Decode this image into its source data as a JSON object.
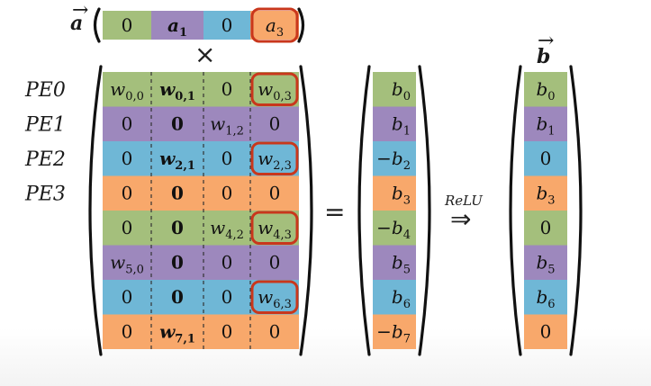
{
  "colors": {
    "green": "#a4bf7c",
    "purple": "#9d88bd",
    "blue": "#6fb7d6",
    "orange": "#f8a86b",
    "highlight": "#c9371c"
  },
  "vector_a": {
    "label": "a",
    "cells": [
      {
        "base": "0",
        "sub": "",
        "style": "plain",
        "color": "green"
      },
      {
        "base": "a",
        "sub": "1",
        "style": "bold",
        "color": "purple"
      },
      {
        "base": "0",
        "sub": "",
        "style": "plain",
        "color": "blue"
      },
      {
        "base": "a",
        "sub": "3",
        "style": "italic",
        "color": "orange",
        "highlight": true
      }
    ]
  },
  "times_symbol": "×",
  "pe_labels": [
    "PE0",
    "PE1",
    "PE2",
    "PE3"
  ],
  "row_colors": [
    "green",
    "purple",
    "blue",
    "orange",
    "green",
    "purple",
    "blue",
    "orange"
  ],
  "matrix_w": [
    [
      {
        "base": "w",
        "sub": "0,0",
        "style": "italic"
      },
      {
        "base": "w",
        "sub": "0,1",
        "style": "bold"
      },
      {
        "base": "0",
        "sub": "",
        "style": "plain"
      },
      {
        "base": "w",
        "sub": "0,3",
        "style": "italic",
        "highlight": true
      }
    ],
    [
      {
        "base": "0",
        "sub": "",
        "style": "plain"
      },
      {
        "base": "0",
        "sub": "",
        "style": "boldup"
      },
      {
        "base": "w",
        "sub": "1,2",
        "style": "italic"
      },
      {
        "base": "0",
        "sub": "",
        "style": "plain"
      }
    ],
    [
      {
        "base": "0",
        "sub": "",
        "style": "plain"
      },
      {
        "base": "w",
        "sub": "2,1",
        "style": "bold"
      },
      {
        "base": "0",
        "sub": "",
        "style": "plain"
      },
      {
        "base": "w",
        "sub": "2,3",
        "style": "italic",
        "highlight": true
      }
    ],
    [
      {
        "base": "0",
        "sub": "",
        "style": "plain"
      },
      {
        "base": "0",
        "sub": "",
        "style": "boldup"
      },
      {
        "base": "0",
        "sub": "",
        "style": "plain"
      },
      {
        "base": "0",
        "sub": "",
        "style": "plain"
      }
    ],
    [
      {
        "base": "0",
        "sub": "",
        "style": "plain"
      },
      {
        "base": "0",
        "sub": "",
        "style": "boldup"
      },
      {
        "base": "w",
        "sub": "4,2",
        "style": "italic"
      },
      {
        "base": "w",
        "sub": "4,3",
        "style": "italic",
        "highlight": true
      }
    ],
    [
      {
        "base": "w",
        "sub": "5,0",
        "style": "italic"
      },
      {
        "base": "0",
        "sub": "",
        "style": "boldup"
      },
      {
        "base": "0",
        "sub": "",
        "style": "plain"
      },
      {
        "base": "0",
        "sub": "",
        "style": "plain"
      }
    ],
    [
      {
        "base": "0",
        "sub": "",
        "style": "plain"
      },
      {
        "base": "0",
        "sub": "",
        "style": "boldup"
      },
      {
        "base": "0",
        "sub": "",
        "style": "plain"
      },
      {
        "base": "w",
        "sub": "6,3",
        "style": "italic",
        "highlight": true
      }
    ],
    [
      {
        "base": "0",
        "sub": "",
        "style": "plain"
      },
      {
        "base": "w",
        "sub": "7,1",
        "style": "bold"
      },
      {
        "base": "0",
        "sub": "",
        "style": "plain"
      },
      {
        "base": "0",
        "sub": "",
        "style": "plain"
      }
    ]
  ],
  "equals_symbol": "=",
  "vector_b_pre": [
    {
      "sign": "",
      "base": "b",
      "sub": "0"
    },
    {
      "sign": "",
      "base": "b",
      "sub": "1"
    },
    {
      "sign": "−",
      "base": "b",
      "sub": "2"
    },
    {
      "sign": "",
      "base": "b",
      "sub": "3"
    },
    {
      "sign": "−",
      "base": "b",
      "sub": "4"
    },
    {
      "sign": "",
      "base": "b",
      "sub": "5"
    },
    {
      "sign": "",
      "base": "b",
      "sub": "6"
    },
    {
      "sign": "−",
      "base": "b",
      "sub": "7"
    }
  ],
  "relu": {
    "label": "ReLU",
    "arrow": "⇒"
  },
  "vector_b": {
    "label": "b",
    "cells": [
      {
        "base": "b",
        "sub": "0"
      },
      {
        "base": "b",
        "sub": "1"
      },
      {
        "base": "0",
        "sub": ""
      },
      {
        "base": "b",
        "sub": "3"
      },
      {
        "base": "0",
        "sub": ""
      },
      {
        "base": "b",
        "sub": "5"
      },
      {
        "base": "b",
        "sub": "6"
      },
      {
        "base": "0",
        "sub": ""
      }
    ]
  }
}
